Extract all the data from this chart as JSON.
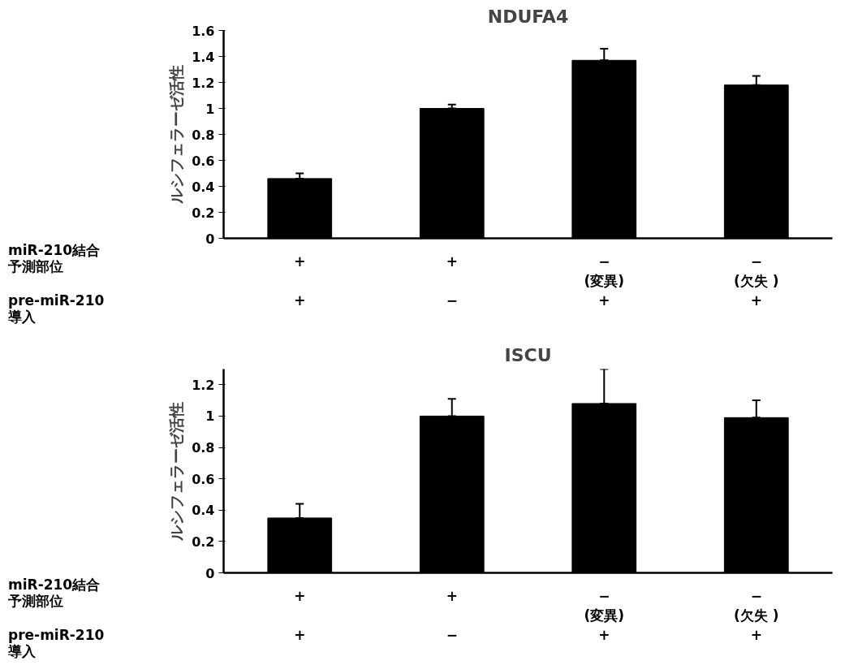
{
  "chart_data": [
    {
      "type": "bar",
      "title": "NDUFA4",
      "ylabel": "ルシフェラーゼ活性",
      "categories": [
        "+\n\n+",
        "+\n\n−",
        "−\n(変異)\n+",
        "−\n(欠失 )\n+"
      ],
      "values": [
        0.46,
        1.0,
        1.37,
        1.18
      ],
      "color": "#000000",
      "errors": [
        [
          0.46,
          0.5
        ],
        [
          1.0,
          1.03
        ],
        [
          1.37,
          1.46
        ],
        [
          1.18,
          1.25
        ]
      ],
      "ylim": [
        0,
        1.6
      ],
      "yticks": [
        0,
        0.2,
        0.4,
        0.6,
        0.8,
        1,
        1.2,
        1.4,
        1.6
      ],
      "grid": false,
      "annotations": [
        "miR-210結合予測部位",
        "pre-miR-210\n導入"
      ]
    },
    {
      "type": "bar",
      "title": "ISCU",
      "ylabel": "ルシフェラーゼ活性",
      "categories": [
        "+\n\n+",
        "+\n\n−",
        "−\n(変異)\n+",
        "−\n(欠失 )\n+"
      ],
      "values": [
        0.35,
        1.0,
        1.08,
        0.99
      ],
      "color": "#000000",
      "errors": [
        [
          0.35,
          0.44
        ],
        [
          1.0,
          1.11
        ],
        [
          1.08,
          1.3
        ],
        [
          0.99,
          1.1
        ]
      ],
      "ylim": [
        0,
        1.3
      ],
      "yticks": [
        0,
        0.2,
        0.4,
        0.6,
        0.8,
        1,
        1.2
      ],
      "grid": false,
      "annotations": [
        "miR-210結合予測部位",
        "pre-miR-210\n導入"
      ]
    }
  ]
}
